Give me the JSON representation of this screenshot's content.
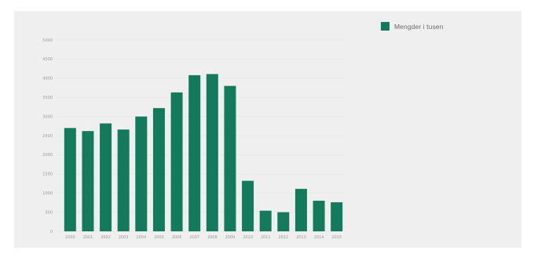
{
  "chart_data": {
    "type": "bar",
    "categories": [
      "2000",
      "2001",
      "2002",
      "2003",
      "2004",
      "2005",
      "2006",
      "2007",
      "2008",
      "2009",
      "2010",
      "2011",
      "2012",
      "2013",
      "2014",
      "2015"
    ],
    "series": [
      {
        "name": "Mengder i tusen",
        "values": [
          2700,
          2620,
          2820,
          2660,
          3000,
          3220,
          3630,
          4080,
          4110,
          3800,
          1320,
          540,
          500,
          1110,
          800,
          760
        ]
      }
    ],
    "y_ticks": [
      "0",
      "500",
      "1000",
      "1500",
      "2000",
      "2500",
      "3000",
      "3500",
      "4000",
      "4500",
      "5000"
    ],
    "ylim": [
      0,
      5000
    ],
    "title": "",
    "xlabel": "",
    "ylabel": "",
    "grid": true,
    "legend_position": "top-right"
  },
  "legend": {
    "label": "Mengder i tusen"
  },
  "colors": {
    "bar": "#147a5c",
    "panel": "#efefef",
    "grid": "#e6e6e6",
    "tick_text": "#9a9a9a"
  }
}
